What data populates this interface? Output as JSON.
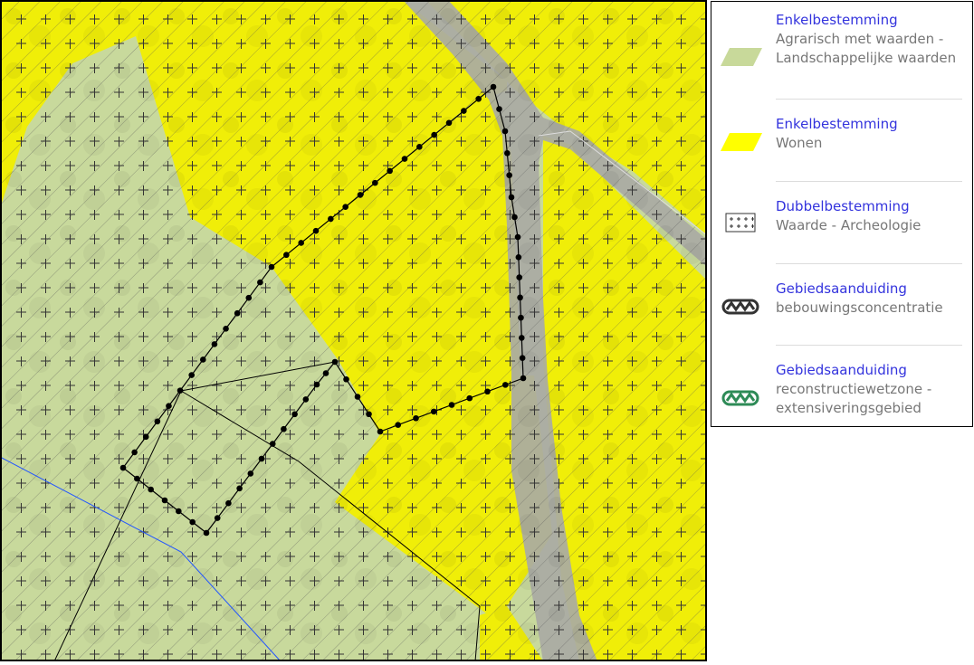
{
  "legend": {
    "items": [
      {
        "title": "Enkelbestemming",
        "desc": [
          "Agrarisch met waarden -",
          "Landschappelijke waarden"
        ],
        "symbol": "agrarisch-swatch",
        "color": "#c8d99a"
      },
      {
        "title": "Enkelbestemming",
        "desc": [
          "Wonen"
        ],
        "symbol": "wonen-swatch",
        "color": "#ffff00"
      },
      {
        "title": "Dubbelbestemming",
        "desc": [
          "Waarde - Archeologie"
        ],
        "symbol": "archeologie-cross-grid",
        "color": "#444444"
      },
      {
        "title": "Gebiedsaanduiding",
        "desc": [
          "bebouwingsconcentratie"
        ],
        "symbol": "zigzag-outline-dark",
        "color": "#333333"
      },
      {
        "title": "Gebiedsaanduiding",
        "desc": [
          "reconstructiewetzone -",
          "extensiveringsgebied"
        ],
        "symbol": "zigzag-outline-green",
        "color": "#2e8b57"
      }
    ]
  },
  "map": {
    "colors": {
      "aerial_base": "#6f7a58",
      "agrarisch_fill": "#c9dba0",
      "wonen_fill": "#f2f000",
      "road": "#a8a8a8",
      "hatch": "#666666",
      "boundary": "#000000",
      "blue_line": "#2255ff"
    }
  }
}
